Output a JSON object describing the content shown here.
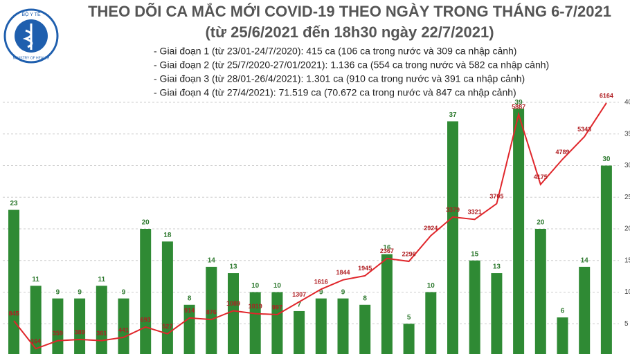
{
  "chart_data": {
    "type": "bar-line",
    "title": "THEO DÕI CA MẮC MỚI COVID-19 THEO NGÀY TRONG THÁNG 6-7/2021",
    "subtitle": "(từ 25/6/2021 đến 18h30 ngày 22/7/2021)",
    "notes": [
      "- Giai đoạn 1 (từ 23/01-24/7/2020): 415 ca (106 ca trong nước và 309 ca nhập cảnh)",
      "- Giai đoạn 2 (từ 25/7/2020-27/01/2021): 1.136 ca (554 ca trong nước và 582 ca nhập cảnh)",
      "- Giai đoạn 3 (từ 28/01-26/4/2021): 1.301 ca (910 ca trong nước và 391 ca nhập cảnh)",
      "- Giai đoạn 4 (từ 27/4/2021): 71.519 ca (70.672 ca trong nước và 847 ca nhập cảnh)"
    ],
    "logo": {
      "top": "BỘ Y TẾ",
      "bottom": "MINISTRY OF HEALTH"
    },
    "series": [
      {
        "type": "bar",
        "color": "#2f8a34",
        "values": [
          23,
          11,
          9,
          9,
          11,
          9,
          20,
          18,
          8,
          14,
          13,
          10,
          10,
          7,
          9,
          9,
          8,
          16,
          5,
          10,
          37,
          15,
          13,
          39,
          20,
          6,
          14,
          30
        ]
      },
      {
        "type": "line",
        "axis": "y2",
        "color": "#e0262b",
        "values": [
          845,
          164,
          359,
          389,
          361,
          441,
          693,
          527,
          914,
          876,
          1089,
          1019,
          997,
          1307,
          1616,
          1844,
          1945,
          2367,
          2296,
          2924,
          3379,
          3321,
          3705,
          5887,
          4175,
          4789,
          5343,
          6164
        ]
      }
    ],
    "ylim": [
      0,
      40
    ],
    "yticks": [
      5,
      10,
      15,
      20,
      25,
      30,
      35,
      40
    ],
    "y2lim": [
      0,
      6180
    ],
    "grid": true
  }
}
